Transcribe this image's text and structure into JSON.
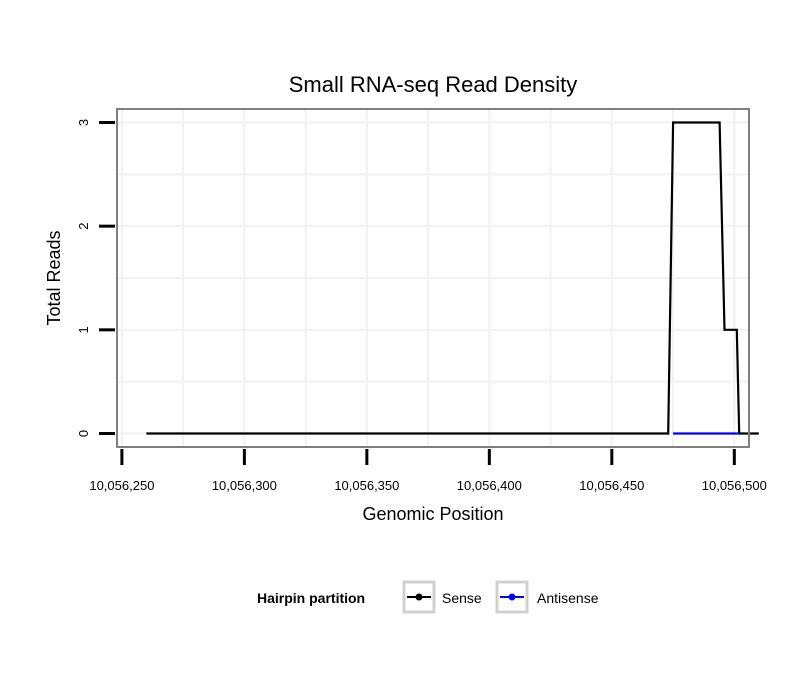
{
  "chart_data": {
    "type": "line",
    "title": "Small RNA-seq Read Density",
    "xlabel": "Genomic Position",
    "ylabel": "Total Reads",
    "xlim": [
      10056248,
      10056506
    ],
    "ylim": [
      -0.13,
      3.13
    ],
    "x_ticks": [
      10056250,
      10056300,
      10056350,
      10056400,
      10056450,
      10056500
    ],
    "x_tick_labels": [
      "10,056,250",
      "10,056,300",
      "10,056,350",
      "10,056,400",
      "10,056,450",
      "10,056,500"
    ],
    "y_ticks": [
      0,
      1,
      2,
      3
    ],
    "y_tick_labels": [
      "0",
      "1",
      "2",
      "3"
    ],
    "grid": true,
    "legend_title": "Hairpin partition",
    "legend_position": "bottom",
    "series": [
      {
        "name": "Sense",
        "color": "#000000",
        "x": [
          10056260,
          10056473,
          10056475,
          10056494,
          10056496,
          10056501,
          10056502,
          10056510
        ],
        "y": [
          0,
          0,
          3,
          3,
          1,
          1,
          0,
          0
        ]
      },
      {
        "name": "Antisense",
        "color": "#0000ff",
        "x": [
          10056475,
          10056502
        ],
        "y": [
          0,
          0
        ]
      }
    ]
  }
}
